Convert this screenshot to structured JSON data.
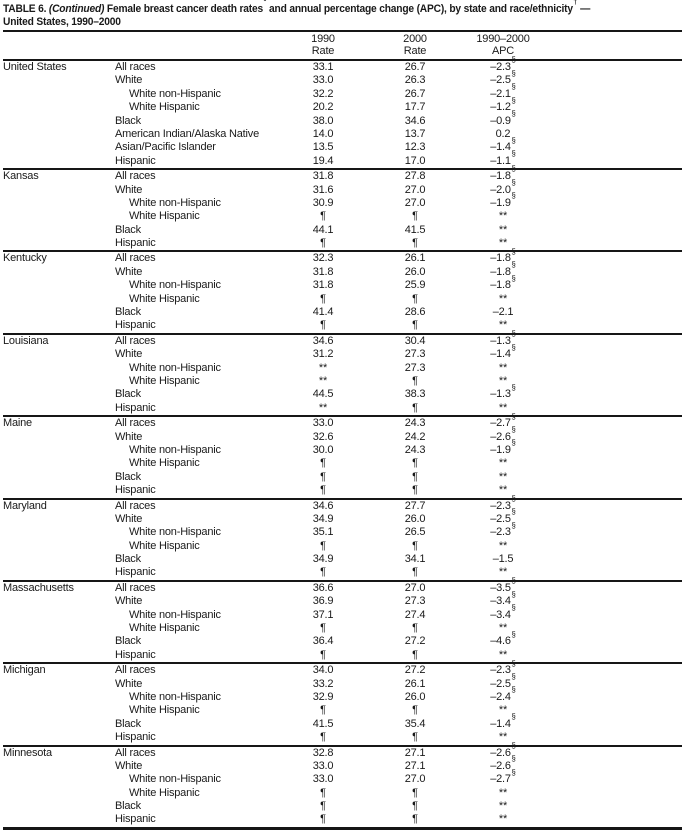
{
  "title": {
    "table_label": "TABLE 6.",
    "continued": "(Continued)",
    "segment1": "Female breast cancer death rates",
    "footnote_star": "*",
    "segment2": "and annual percentage change (APC), by state and race/ethnicity",
    "footnote_dagger": "†",
    "segment3": "—",
    "line2": "United States, 1990–2000"
  },
  "columns": {
    "rate1990": "1990\nRate",
    "rate2000": "2000\nRate",
    "apc": "1990–2000\nAPC"
  },
  "table": {
    "sections": [
      {
        "state": "United States",
        "rows": [
          {
            "label": "All races",
            "indent": false,
            "rate1990": "33.1",
            "rate2000": "26.7",
            "apc": "–2.3",
            "apc_sup": "§"
          },
          {
            "label": "White",
            "indent": false,
            "rate1990": "33.0",
            "rate2000": "26.3",
            "apc": "–2.5",
            "apc_sup": "§"
          },
          {
            "label": "White non-Hispanic",
            "indent": true,
            "rate1990": "32.2",
            "rate2000": "26.7",
            "apc": "–2.1",
            "apc_sup": "§"
          },
          {
            "label": "White Hispanic",
            "indent": true,
            "rate1990": "20.2",
            "rate2000": "17.7",
            "apc": "–1.2",
            "apc_sup": "§"
          },
          {
            "label": "Black",
            "indent": false,
            "rate1990": "38.0",
            "rate2000": "34.6",
            "apc": "–0.9",
            "apc_sup": "§"
          },
          {
            "label": "American Indian/Alaska Native",
            "indent": false,
            "rate1990": "14.0",
            "rate2000": "13.7",
            "apc": "0.2",
            "apc_sup": ""
          },
          {
            "label": "Asian/Pacific Islander",
            "indent": false,
            "rate1990": "13.5",
            "rate2000": "12.3",
            "apc": "–1.4",
            "apc_sup": "§"
          },
          {
            "label": "Hispanic",
            "indent": false,
            "rate1990": "19.4",
            "rate2000": "17.0",
            "apc": "–1.1",
            "apc_sup": "§"
          }
        ]
      },
      {
        "state": "Kansas",
        "rows": [
          {
            "label": "All races",
            "indent": false,
            "rate1990": "31.8",
            "rate2000": "27.8",
            "apc": "–1.8",
            "apc_sup": "§"
          },
          {
            "label": "White",
            "indent": false,
            "rate1990": "31.6",
            "rate2000": "27.0",
            "apc": "–2.0",
            "apc_sup": "§"
          },
          {
            "label": "White non-Hispanic",
            "indent": true,
            "rate1990": "30.9",
            "rate2000": "27.0",
            "apc": "–1.9",
            "apc_sup": "§"
          },
          {
            "label": "White Hispanic",
            "indent": true,
            "rate1990": "¶",
            "rate2000": "¶",
            "apc": "**",
            "apc_sup": ""
          },
          {
            "label": "Black",
            "indent": false,
            "rate1990": "44.1",
            "rate2000": "41.5",
            "apc": "**",
            "apc_sup": ""
          },
          {
            "label": "Hispanic",
            "indent": false,
            "rate1990": "¶",
            "rate2000": "¶",
            "apc": "**",
            "apc_sup": ""
          }
        ]
      },
      {
        "state": "Kentucky",
        "rows": [
          {
            "label": "All races",
            "indent": false,
            "rate1990": "32.3",
            "rate2000": "26.1",
            "apc": "–1.8",
            "apc_sup": "§"
          },
          {
            "label": "White",
            "indent": false,
            "rate1990": "31.8",
            "rate2000": "26.0",
            "apc": "–1.8",
            "apc_sup": "§"
          },
          {
            "label": "White non-Hispanic",
            "indent": true,
            "rate1990": "31.8",
            "rate2000": "25.9",
            "apc": "–1.8",
            "apc_sup": "§"
          },
          {
            "label": "White Hispanic",
            "indent": true,
            "rate1990": "¶",
            "rate2000": "¶",
            "apc": "**",
            "apc_sup": ""
          },
          {
            "label": "Black",
            "indent": false,
            "rate1990": "41.4",
            "rate2000": "28.6",
            "apc": "–2.1",
            "apc_sup": ""
          },
          {
            "label": "Hispanic",
            "indent": false,
            "rate1990": "¶",
            "rate2000": "¶",
            "apc": "**",
            "apc_sup": ""
          }
        ]
      },
      {
        "state": "Louisiana",
        "rows": [
          {
            "label": "All races",
            "indent": false,
            "rate1990": "34.6",
            "rate2000": "30.4",
            "apc": "–1.3",
            "apc_sup": "§"
          },
          {
            "label": "White",
            "indent": false,
            "rate1990": "31.2",
            "rate2000": "27.3",
            "apc": "–1.4",
            "apc_sup": "§"
          },
          {
            "label": "White non-Hispanic",
            "indent": true,
            "rate1990": "**",
            "rate2000": "27.3",
            "apc": "**",
            "apc_sup": ""
          },
          {
            "label": "White Hispanic",
            "indent": true,
            "rate1990": "**",
            "rate2000": "¶",
            "apc": "**",
            "apc_sup": ""
          },
          {
            "label": "Black",
            "indent": false,
            "rate1990": "44.5",
            "rate2000": "38.3",
            "apc": "–1.3",
            "apc_sup": "§"
          },
          {
            "label": "Hispanic",
            "indent": false,
            "rate1990": "**",
            "rate2000": "¶",
            "apc": "**",
            "apc_sup": ""
          }
        ]
      },
      {
        "state": "Maine",
        "rows": [
          {
            "label": "All races",
            "indent": false,
            "rate1990": "33.0",
            "rate2000": "24.3",
            "apc": "–2.7",
            "apc_sup": "§"
          },
          {
            "label": "White",
            "indent": false,
            "rate1990": "32.6",
            "rate2000": "24.2",
            "apc": "–2.6",
            "apc_sup": "§"
          },
          {
            "label": "White non-Hispanic",
            "indent": true,
            "rate1990": "30.0",
            "rate2000": "24.3",
            "apc": "–1.9",
            "apc_sup": "§"
          },
          {
            "label": "White Hispanic",
            "indent": true,
            "rate1990": "¶",
            "rate2000": "¶",
            "apc": "**",
            "apc_sup": ""
          },
          {
            "label": "Black",
            "indent": false,
            "rate1990": "¶",
            "rate2000": "¶",
            "apc": "**",
            "apc_sup": ""
          },
          {
            "label": "Hispanic",
            "indent": false,
            "rate1990": "¶",
            "rate2000": "¶",
            "apc": "**",
            "apc_sup": ""
          }
        ]
      },
      {
        "state": "Maryland",
        "rows": [
          {
            "label": "All races",
            "indent": false,
            "rate1990": "34.6",
            "rate2000": "27.7",
            "apc": "–2.3",
            "apc_sup": "§"
          },
          {
            "label": "White",
            "indent": false,
            "rate1990": "34.9",
            "rate2000": "26.0",
            "apc": "–2.5",
            "apc_sup": "§"
          },
          {
            "label": "White non-Hispanic",
            "indent": true,
            "rate1990": "35.1",
            "rate2000": "26.5",
            "apc": "–2.3",
            "apc_sup": "§"
          },
          {
            "label": "White Hispanic",
            "indent": true,
            "rate1990": "¶",
            "rate2000": "¶",
            "apc": "**",
            "apc_sup": ""
          },
          {
            "label": "Black",
            "indent": false,
            "rate1990": "34.9",
            "rate2000": "34.1",
            "apc": "–1.5",
            "apc_sup": ""
          },
          {
            "label": "Hispanic",
            "indent": false,
            "rate1990": "¶",
            "rate2000": "¶",
            "apc": "**",
            "apc_sup": ""
          }
        ]
      },
      {
        "state": "Massachusetts",
        "rows": [
          {
            "label": "All races",
            "indent": false,
            "rate1990": "36.6",
            "rate2000": "27.0",
            "apc": "–3.5",
            "apc_sup": "§"
          },
          {
            "label": "White",
            "indent": false,
            "rate1990": "36.9",
            "rate2000": "27.3",
            "apc": "–3.4",
            "apc_sup": "§"
          },
          {
            "label": "White non-Hispanic",
            "indent": true,
            "rate1990": "37.1",
            "rate2000": "27.4",
            "apc": "–3.4",
            "apc_sup": "§"
          },
          {
            "label": "White Hispanic",
            "indent": true,
            "rate1990": "¶",
            "rate2000": "¶",
            "apc": "**",
            "apc_sup": ""
          },
          {
            "label": "Black",
            "indent": false,
            "rate1990": "36.4",
            "rate2000": "27.2",
            "apc": "–4.6",
            "apc_sup": "§"
          },
          {
            "label": "Hispanic",
            "indent": false,
            "rate1990": "¶",
            "rate2000": "¶",
            "apc": "**",
            "apc_sup": ""
          }
        ]
      },
      {
        "state": "Michigan",
        "rows": [
          {
            "label": "All races",
            "indent": false,
            "rate1990": "34.0",
            "rate2000": "27.2",
            "apc": "–2.3",
            "apc_sup": "§"
          },
          {
            "label": "White",
            "indent": false,
            "rate1990": "33.2",
            "rate2000": "26.1",
            "apc": "–2.5",
            "apc_sup": "§"
          },
          {
            "label": "White non-Hispanic",
            "indent": true,
            "rate1990": "32.9",
            "rate2000": "26.0",
            "apc": "–2.4",
            "apc_sup": "§"
          },
          {
            "label": "White Hispanic",
            "indent": true,
            "rate1990": "¶",
            "rate2000": "¶",
            "apc": "**",
            "apc_sup": ""
          },
          {
            "label": "Black",
            "indent": false,
            "rate1990": "41.5",
            "rate2000": "35.4",
            "apc": "–1.4",
            "apc_sup": "§"
          },
          {
            "label": "Hispanic",
            "indent": false,
            "rate1990": "¶",
            "rate2000": "¶",
            "apc": "**",
            "apc_sup": ""
          }
        ]
      },
      {
        "state": "Minnesota",
        "rows": [
          {
            "label": "All races",
            "indent": false,
            "rate1990": "32.8",
            "rate2000": "27.1",
            "apc": "–2.6",
            "apc_sup": "§"
          },
          {
            "label": "White",
            "indent": false,
            "rate1990": "33.0",
            "rate2000": "27.1",
            "apc": "–2.6",
            "apc_sup": "§"
          },
          {
            "label": "White non-Hispanic",
            "indent": true,
            "rate1990": "33.0",
            "rate2000": "27.0",
            "apc": "–2.7",
            "apc_sup": "§"
          },
          {
            "label": "White Hispanic",
            "indent": true,
            "rate1990": "¶",
            "rate2000": "¶",
            "apc": "**",
            "apc_sup": ""
          },
          {
            "label": "Black",
            "indent": false,
            "rate1990": "¶",
            "rate2000": "¶",
            "apc": "**",
            "apc_sup": ""
          },
          {
            "label": "Hispanic",
            "indent": false,
            "rate1990": "¶",
            "rate2000": "¶",
            "apc": "**",
            "apc_sup": ""
          }
        ]
      }
    ]
  }
}
